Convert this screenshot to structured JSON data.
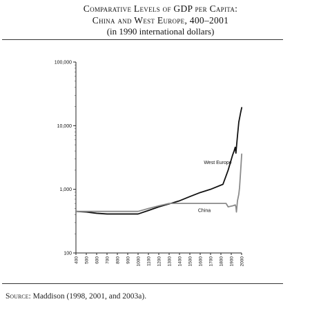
{
  "figure": {
    "title_line1": "Comparative Levels of GDP per Capita:",
    "title_line2": "China and West Europe, 400–2001",
    "title_line3": "(in 1990 international dollars)",
    "source_label": "Source:",
    "source_text": " Maddison (1998, 2001, and 2003a)."
  },
  "chart_data": {
    "type": "line",
    "title": "",
    "xlabel": "",
    "ylabel": "",
    "xlim": [
      400,
      2000
    ],
    "ylim": [
      100,
      100000
    ],
    "y_scale": "log",
    "grid": false,
    "legend": "none",
    "x_ticks": [
      "400",
      "500",
      "600",
      "700",
      "800",
      "900",
      "1000",
      "1100",
      "1200",
      "1300",
      "1400",
      "1500",
      "1600",
      "1700",
      "1800",
      "1900",
      "2000"
    ],
    "y_ticks": [
      {
        "value": 100,
        "label": "100"
      },
      {
        "value": 1000,
        "label": "1,000"
      },
      {
        "value": 10000,
        "label": "10,000"
      },
      {
        "value": 100000,
        "label": "100,000"
      }
    ],
    "series": [
      {
        "name": "West Europe",
        "color": "#111111",
        "x": [
          400,
          500,
          600,
          700,
          800,
          900,
          1000,
          1100,
          1200,
          1300,
          1400,
          1500,
          1600,
          1700,
          1820,
          1870,
          1913,
          1929,
          1938,
          1945,
          1950,
          1960,
          1973,
          1990,
          2001
        ],
        "y": [
          450,
          440,
          420,
          410,
          410,
          410,
          410,
          465,
          530,
          590,
          660,
          770,
          890,
          1000,
          1200,
          2000,
          3460,
          4080,
          4570,
          3700,
          4580,
          6900,
          11400,
          15900,
          19200
        ]
      },
      {
        "name": "China",
        "color": "#8a8a8a",
        "x": [
          400,
          500,
          600,
          700,
          800,
          900,
          1000,
          1100,
          1200,
          1300,
          1400,
          1500,
          1600,
          1700,
          1820,
          1850,
          1870,
          1890,
          1913,
          1929,
          1938,
          1945,
          1950,
          1960,
          1973,
          1980,
          1990,
          2001
        ],
        "y": [
          450,
          450,
          450,
          450,
          450,
          450,
          450,
          500,
          550,
          600,
          600,
          600,
          600,
          600,
          600,
          600,
          530,
          540,
          550,
          560,
          570,
          530,
          440,
          660,
          840,
          1060,
          1870,
          3580
        ]
      }
    ],
    "annotations": [
      {
        "text": "West Europe",
        "x": 1770,
        "y": 2500
      },
      {
        "text": "China",
        "x": 1640,
        "y": 440
      }
    ]
  }
}
